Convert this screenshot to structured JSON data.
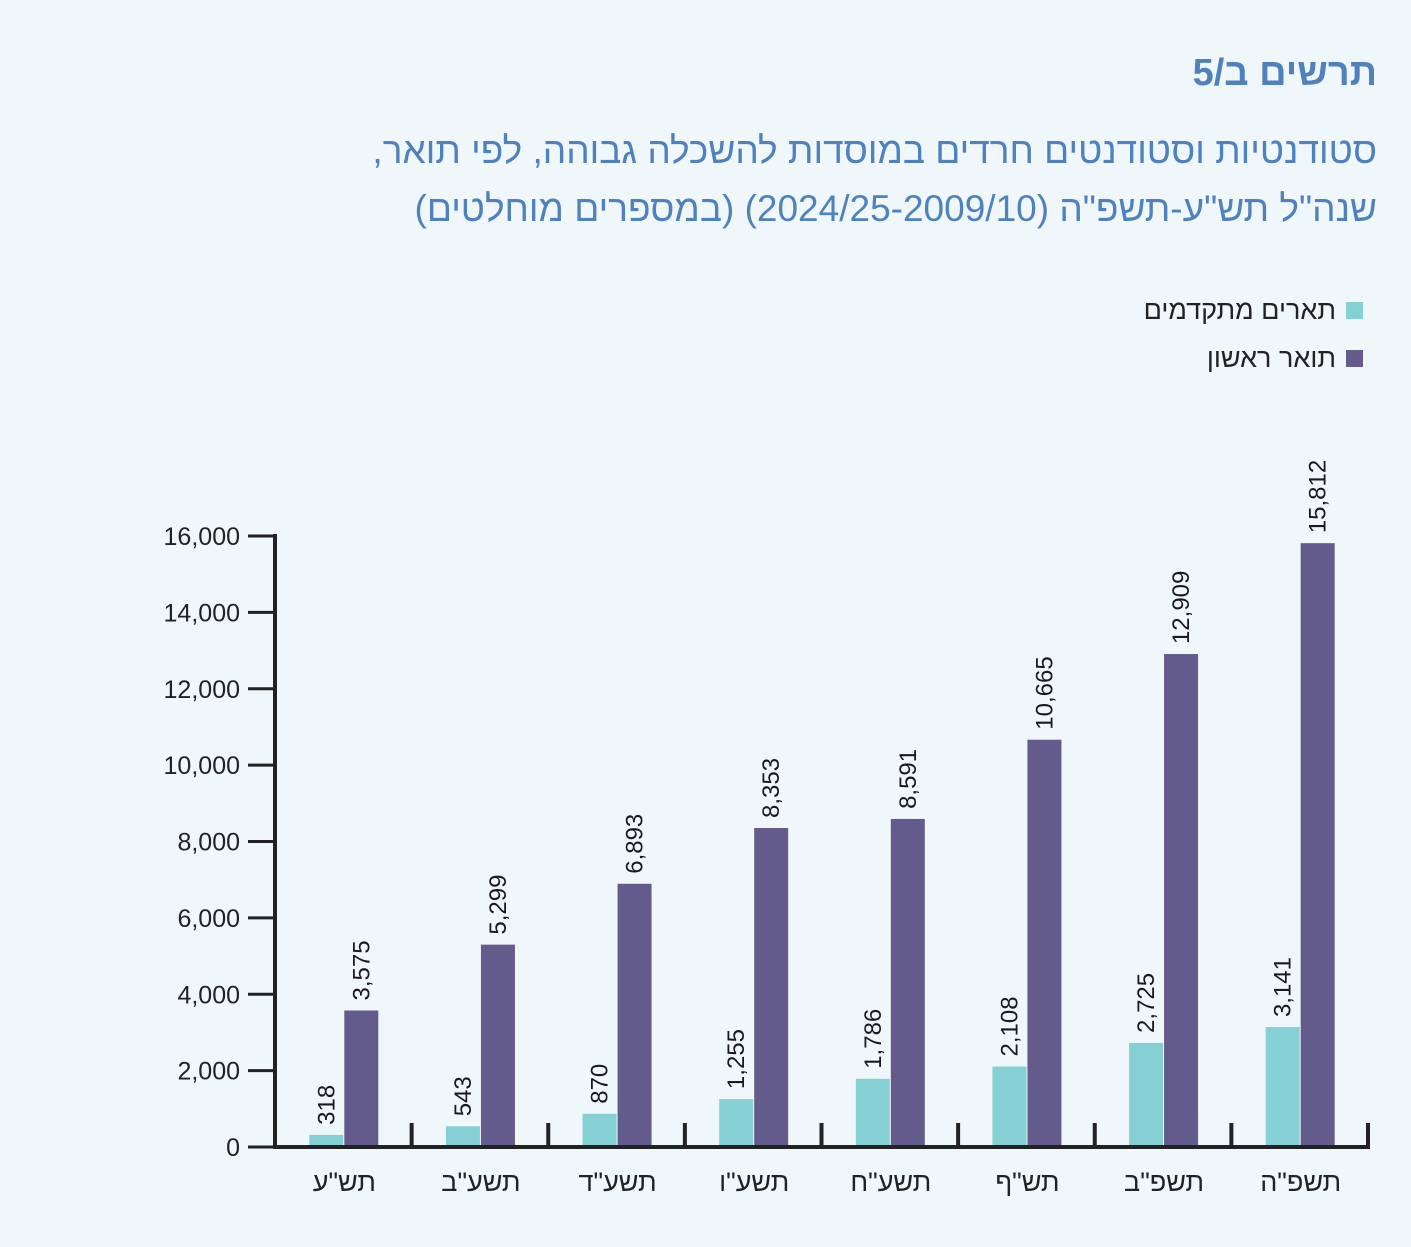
{
  "figure": {
    "label": "תרשים ב/5",
    "title_line1": "סטודנטיות וסטודנטים חרדים במוסדות להשכלה גבוהה, לפי תואר,",
    "title_line2": "שנה\"ל תש\"ע-תשפ\"ה (2024/25-2009/10) (במספרים מוחלטים)"
  },
  "chart_data": {
    "type": "bar",
    "title": "סטודנטיות וסטודנטים חרדים במוסדות להשכלה גבוהה, לפי תואר, שנה\"ל תש\"ע-תשפ\"ה (2024/25-2009/10) (במספרים מוחלטים)",
    "xlabel": "",
    "ylabel": "",
    "categories": [
      "תש\"ע",
      "תשע\"ב",
      "תשע\"ד",
      "תשע\"ו",
      "תשע\"ח",
      "תש\"ף",
      "תשפ\"ב",
      "תשפ\"ה"
    ],
    "series": [
      {
        "name": "תארים מתקדמים",
        "color": "#84d0d4",
        "values": [
          318,
          543,
          870,
          1255,
          1786,
          2108,
          2725,
          3141
        ],
        "labels": [
          "318",
          "543",
          "870",
          "1,255",
          "1,786",
          "2,108",
          "2,725",
          "3,141"
        ]
      },
      {
        "name": "תואר ראשון",
        "color": "#635b8b",
        "values": [
          3575,
          5299,
          6893,
          8353,
          8591,
          10665,
          12909,
          15812
        ],
        "labels": [
          "3,575",
          "5,299",
          "6,893",
          "8,353",
          "8,591",
          "10,665",
          "12,909",
          "15,812"
        ]
      }
    ],
    "ylim": [
      0,
      16000
    ],
    "yticks": [
      0,
      2000,
      4000,
      6000,
      8000,
      10000,
      12000,
      14000,
      16000
    ],
    "ytick_labels": [
      "0",
      "2,000",
      "4,000",
      "6,000",
      "8,000",
      "10,000",
      "12,000",
      "14,000",
      "16,000"
    ],
    "grid": false,
    "legend_position": "top-right",
    "data_labels": "vertical-above-bars"
  },
  "colors": {
    "title": "#4f81bd",
    "axis": "#222222",
    "background": "#f0f7fa"
  }
}
